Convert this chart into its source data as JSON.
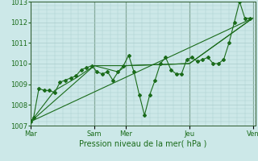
{
  "xlabel": "Pression niveau de la mer( hPa )",
  "bg_color": "#cce8e8",
  "grid_color": "#aacccc",
  "line_color": "#1a6b1a",
  "dark_line_color": "#2d5a2d",
  "ylim": [
    1007,
    1013
  ],
  "yticks": [
    1007,
    1008,
    1009,
    1010,
    1011,
    1012,
    1013
  ],
  "xlim": [
    0,
    170
  ],
  "day_labels": [
    "Mar",
    "Sam",
    "Mer",
    "Jeu",
    "Ven"
  ],
  "day_positions": [
    0,
    48,
    72,
    120,
    168
  ],
  "series1_x": [
    0,
    2,
    6,
    10,
    14,
    18,
    22,
    26,
    30,
    34,
    38,
    42,
    46,
    50,
    54,
    58,
    62,
    66,
    70,
    74,
    78,
    82,
    86,
    90,
    94,
    98,
    102,
    106,
    110,
    114,
    118,
    122,
    126,
    130,
    134,
    138,
    142,
    146,
    150,
    154,
    158,
    162,
    166
  ],
  "series1_y": [
    1007.2,
    1007.4,
    1008.8,
    1008.7,
    1008.7,
    1008.6,
    1009.1,
    1009.2,
    1009.3,
    1009.4,
    1009.7,
    1009.8,
    1009.9,
    1009.6,
    1009.5,
    1009.6,
    1009.2,
    1009.6,
    1009.9,
    1010.4,
    1009.6,
    1008.5,
    1007.5,
    1008.5,
    1009.2,
    1010.0,
    1010.3,
    1009.7,
    1009.5,
    1009.5,
    1010.2,
    1010.3,
    1010.1,
    1010.2,
    1010.3,
    1010.0,
    1010.0,
    1010.2,
    1011.0,
    1012.0,
    1013.0,
    1012.2,
    1012.2
  ],
  "series2_x": [
    0,
    18,
    34,
    48,
    66,
    72,
    120,
    168
  ],
  "series2_y": [
    1007.2,
    1008.7,
    1009.3,
    1009.9,
    1009.6,
    1009.9,
    1010.0,
    1012.2
  ],
  "series3_x": [
    0,
    48,
    72,
    120,
    168
  ],
  "series3_y": [
    1007.2,
    1009.9,
    1009.9,
    1010.0,
    1012.2
  ],
  "series4_x": [
    0,
    168
  ],
  "series4_y": [
    1007.2,
    1012.2
  ]
}
